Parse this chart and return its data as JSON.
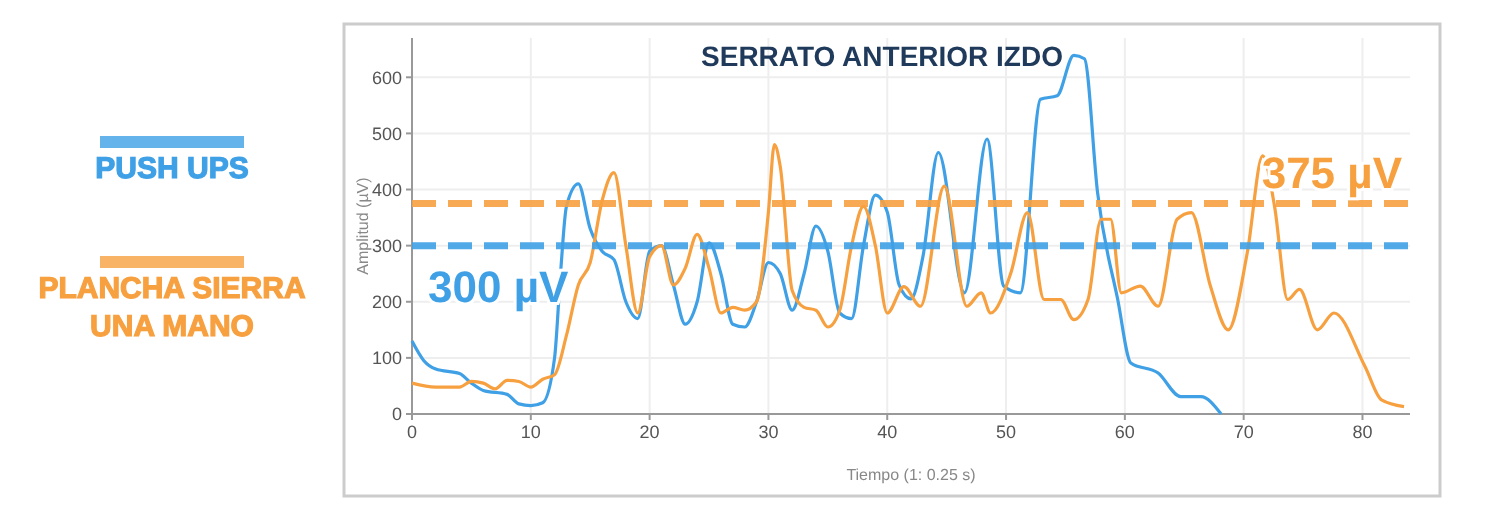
{
  "chart_data": {
    "type": "line",
    "title": "SERRATO ANTERIOR IZDO",
    "xlabel": "Tiempo (1: 0.25 s)",
    "ylabel": "Amplitud (µV)",
    "xlim": [
      0,
      84
    ],
    "ylim": [
      0,
      670
    ],
    "xticks": [
      0,
      10,
      20,
      30,
      40,
      50,
      60,
      70,
      80
    ],
    "yticks": [
      0,
      100,
      200,
      300,
      400,
      500,
      600
    ],
    "grid": true,
    "legend": "left",
    "line_style": "solid",
    "marker": "none",
    "series": [
      {
        "name": "PUSH UPS",
        "color": "#3fa0e6",
        "x": [
          0,
          1,
          2,
          4,
          5,
          6,
          8,
          9,
          10,
          11,
          12,
          12.5,
          13,
          14,
          15,
          16,
          17,
          18,
          19,
          20,
          21,
          22,
          23,
          24,
          25,
          26,
          27,
          28,
          29,
          30,
          31,
          32,
          33,
          34,
          35,
          36,
          37,
          38,
          39,
          40,
          41,
          42,
          43,
          44.3,
          46.5,
          48.4,
          49.8,
          51.2,
          52.9,
          54.3,
          55.7,
          56.6,
          57.7,
          59.4,
          60.5,
          62.8,
          64.7,
          66.4,
          68.1
        ],
        "values": [
          130,
          95,
          80,
          72,
          55,
          42,
          35,
          18,
          15,
          20,
          100,
          250,
          370,
          410,
          330,
          290,
          275,
          200,
          170,
          290,
          300,
          230,
          160,
          200,
          305,
          250,
          160,
          155,
          200,
          270,
          250,
          185,
          250,
          335,
          290,
          180,
          170,
          300,
          390,
          360,
          230,
          205,
          280,
          466,
          216,
          490,
          228,
          216,
          561,
          567,
          639,
          633,
          395,
          204,
          91,
          73,
          31,
          31,
          0
        ]
      },
      {
        "name": "PLANCHA SIERRA UNA MANO",
        "color": "#f7a040",
        "x": [
          0,
          2,
          4,
          5,
          6,
          7,
          8,
          9,
          10,
          11,
          12,
          13,
          14,
          15,
          16,
          17,
          18,
          19,
          20,
          21,
          22,
          23,
          24,
          25,
          26,
          27,
          28,
          29,
          30,
          30.5,
          31,
          32,
          33,
          34,
          35,
          36,
          37,
          38,
          39,
          40,
          41.4,
          42.8,
          44.8,
          46.7,
          47.9,
          48.7,
          50.4,
          51.8,
          53.2,
          54.6,
          55.7,
          56.9,
          58,
          58.8,
          59.7,
          61.3,
          62.8,
          64.4,
          65.6,
          67.2,
          68.7,
          70.3,
          71.6,
          72.6,
          73.7,
          74.7,
          76.2,
          77.6,
          80.2,
          81.6,
          83.5
        ],
        "values": [
          55,
          48,
          48,
          58,
          55,
          45,
          60,
          58,
          48,
          62,
          70,
          140,
          230,
          270,
          380,
          430,
          300,
          180,
          280,
          300,
          230,
          260,
          320,
          260,
          180,
          190,
          185,
          200,
          360,
          480,
          440,
          220,
          190,
          185,
          155,
          185,
          300,
          370,
          300,
          180,
          227,
          192,
          406,
          192,
          216,
          180,
          251,
          359,
          204,
          204,
          168,
          204,
          347,
          347,
          216,
          228,
          192,
          347,
          359,
          228,
          150,
          287,
          460,
          370,
          204,
          222,
          150,
          180,
          85,
          25,
          13
        ]
      }
    ],
    "ref_lines": [
      {
        "axis": "y",
        "value": 300,
        "label": "300 µV",
        "color": "#3fa0e6",
        "line_style": "dashed"
      },
      {
        "axis": "y",
        "value": 375,
        "label": "375 µV",
        "color": "#f7a040",
        "line_style": "dashed"
      }
    ]
  }
}
